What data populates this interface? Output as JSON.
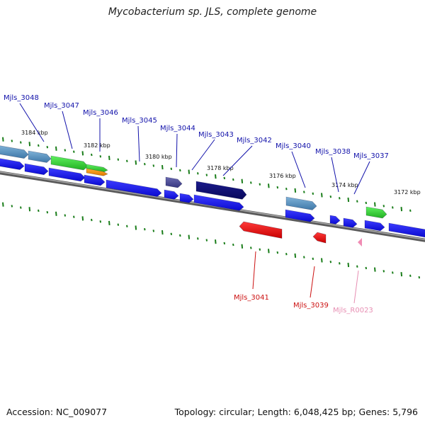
{
  "title": "Mycobacterium sp. JLS, complete genome",
  "footer": {
    "accession": "Accession: NC_009077",
    "summary": "Topology: circular; Length: 6,048,425 bp; Genes: 5,796"
  },
  "colors": {
    "cds": "#1010e6",
    "cds_dark": "#0c0c8a",
    "rna_red": "#e60000",
    "pseudo_pink": "#f08cb4",
    "gc_green": "#1a7d1a",
    "backbone": "#808080",
    "label_blue": "#1111aa",
    "label_red": "#cc1111",
    "label_pink": "#e78fb3"
  },
  "scale_ticks": [
    {
      "label": "3184 kbp"
    },
    {
      "label": "3182 kbp"
    },
    {
      "label": "3180 kbp"
    },
    {
      "label": "3178 kbp"
    },
    {
      "label": "3176 kbp"
    },
    {
      "label": "3174 kbp"
    },
    {
      "label": "3172 kbp"
    }
  ],
  "top_labels": [
    {
      "name": "Mjls_3048"
    },
    {
      "name": "Mjls_3047"
    },
    {
      "name": "Mjls_3046"
    },
    {
      "name": "Mjls_3045"
    },
    {
      "name": "Mjls_3044"
    },
    {
      "name": "Mjls_3043"
    },
    {
      "name": "Mjls_3042"
    },
    {
      "name": "Mjls_3040"
    },
    {
      "name": "Mjls_3038"
    },
    {
      "name": "Mjls_3037"
    }
  ],
  "bottom_labels": [
    {
      "name": "Mjls_3041",
      "kind": "rna"
    },
    {
      "name": "Mjls_3039",
      "kind": "rna"
    },
    {
      "name": "Mjls_R0023",
      "kind": "pseudo"
    }
  ]
}
